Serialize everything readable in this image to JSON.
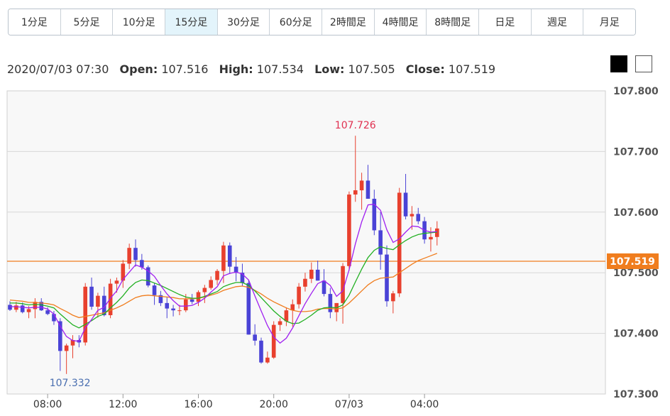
{
  "timeframes": [
    "1分足",
    "5分足",
    "10分足",
    "15分足",
    "30分足",
    "60分足",
    "2時間足",
    "4時間足",
    "8時間足",
    "日足",
    "週足",
    "月足"
  ],
  "active_timeframe": "15分足",
  "ohlc": {
    "datetime": "2020/07/03 07:30",
    "open_label": "Open:",
    "open": "107.516",
    "high_label": "High:",
    "high": "107.534",
    "low_label": "Low:",
    "low": "107.505",
    "close_label": "Close:",
    "close": "107.519"
  },
  "theme_swatches": [
    "dark",
    "light"
  ],
  "colors": {
    "up": "#e8402e",
    "down": "#4a43d6",
    "ma_short": "#a020f0",
    "ma_mid": "#22b022",
    "ma_long": "#f07d1e",
    "price_line": "#f07d1e",
    "max_label": "#e03050",
    "min_label": "#4a6fb0"
  },
  "chart_data": {
    "type": "candlestick",
    "ylim": [
      107.3,
      107.8
    ],
    "yticks": [
      "107.800",
      "107.700",
      "107.600",
      "107.500",
      "107.400",
      "107.300"
    ],
    "xtick_labels": [
      "08:00",
      "12:00",
      "16:00",
      "20:00",
      "07/03",
      "04:00"
    ],
    "xtick_index": [
      6,
      18,
      30,
      42,
      54,
      66
    ],
    "grid": true,
    "current_price": "107.519",
    "max_label": "107.726",
    "min_label": "107.332",
    "candles": [
      [
        107.447,
        107.453,
        107.437,
        107.439
      ],
      [
        107.439,
        107.452,
        107.435,
        107.446
      ],
      [
        107.446,
        107.451,
        107.433,
        107.435
      ],
      [
        107.435,
        107.445,
        107.425,
        107.44
      ],
      [
        107.44,
        107.458,
        107.425,
        107.452
      ],
      [
        107.452,
        107.458,
        107.437,
        107.438
      ],
      [
        107.438,
        107.443,
        107.43,
        107.432
      ],
      [
        107.432,
        107.437,
        107.414,
        107.42
      ],
      [
        107.42,
        107.425,
        107.338,
        107.371
      ],
      [
        107.371,
        107.383,
        107.333,
        107.38
      ],
      [
        107.38,
        107.397,
        107.359,
        107.389
      ],
      [
        107.389,
        107.397,
        107.377,
        107.385
      ],
      [
        107.385,
        107.483,
        107.38,
        107.477
      ],
      [
        107.477,
        107.492,
        107.439,
        107.444
      ],
      [
        107.444,
        107.467,
        107.426,
        107.462
      ],
      [
        107.462,
        107.477,
        107.428,
        107.43
      ],
      [
        107.43,
        107.49,
        107.425,
        107.482
      ],
      [
        107.482,
        107.492,
        107.467,
        107.487
      ],
      [
        107.487,
        107.521,
        107.475,
        107.515
      ],
      [
        107.515,
        107.548,
        107.506,
        107.541
      ],
      [
        107.541,
        107.555,
        107.51,
        107.521
      ],
      [
        107.521,
        107.531,
        107.505,
        107.509
      ],
      [
        107.509,
        107.512,
        107.476,
        107.479
      ],
      [
        107.479,
        107.483,
        107.447,
        107.463
      ],
      [
        107.463,
        107.47,
        107.445,
        107.45
      ],
      [
        107.45,
        107.46,
        107.425,
        107.441
      ],
      [
        107.441,
        107.447,
        107.428,
        107.438
      ],
      [
        107.438,
        107.447,
        107.43,
        107.438
      ],
      [
        107.438,
        107.465,
        107.435,
        107.456
      ],
      [
        107.456,
        107.465,
        107.448,
        107.452
      ],
      [
        107.452,
        107.471,
        107.445,
        107.468
      ],
      [
        107.468,
        107.48,
        107.45,
        107.475
      ],
      [
        107.475,
        107.494,
        107.472,
        107.488
      ],
      [
        107.488,
        107.506,
        107.48,
        107.503
      ],
      [
        107.503,
        107.551,
        107.483,
        107.545
      ],
      [
        107.545,
        107.55,
        107.498,
        107.51
      ],
      [
        107.51,
        107.526,
        107.486,
        107.5
      ],
      [
        107.5,
        107.515,
        107.478,
        107.483
      ],
      [
        107.483,
        107.488,
        107.398,
        107.398
      ],
      [
        107.398,
        107.415,
        107.38,
        107.388
      ],
      [
        107.388,
        107.393,
        107.35,
        107.352
      ],
      [
        107.352,
        107.37,
        107.35,
        107.36
      ],
      [
        107.36,
        107.42,
        107.358,
        107.414
      ],
      [
        107.414,
        107.425,
        107.404,
        107.42
      ],
      [
        107.42,
        107.443,
        107.412,
        107.438
      ],
      [
        107.438,
        107.456,
        107.411,
        107.448
      ],
      [
        107.448,
        107.483,
        107.441,
        107.477
      ],
      [
        107.477,
        107.5,
        107.469,
        107.49
      ],
      [
        107.49,
        107.517,
        107.483,
        107.505
      ],
      [
        107.505,
        107.52,
        107.487,
        107.487
      ],
      [
        107.487,
        107.506,
        107.461,
        107.465
      ],
      [
        107.465,
        107.475,
        107.425,
        107.435
      ],
      [
        107.435,
        107.45,
        107.42,
        107.45
      ],
      [
        107.45,
        107.516,
        107.416,
        107.511
      ],
      [
        107.511,
        107.634,
        107.503,
        107.629
      ],
      [
        107.629,
        107.726,
        107.617,
        107.636
      ],
      [
        107.636,
        107.665,
        107.604,
        107.652
      ],
      [
        107.652,
        107.678,
        107.622,
        107.622
      ],
      [
        107.622,
        107.637,
        107.562,
        107.57
      ],
      [
        107.57,
        107.6,
        107.505,
        107.53
      ],
      [
        107.53,
        107.545,
        107.444,
        107.453
      ],
      [
        107.453,
        107.47,
        107.433,
        107.466
      ],
      [
        107.466,
        107.64,
        107.46,
        107.632
      ],
      [
        107.632,
        107.663,
        107.588,
        107.593
      ],
      [
        107.593,
        107.61,
        107.571,
        107.597
      ],
      [
        107.597,
        107.607,
        107.58,
        107.585
      ],
      [
        107.585,
        107.592,
        107.548,
        107.555
      ],
      [
        107.555,
        107.575,
        107.535,
        107.559
      ],
      [
        107.559,
        107.585,
        107.545,
        107.573
      ]
    ],
    "ma_short": [
      107.444,
      107.444,
      107.443,
      107.442,
      107.443,
      107.443,
      107.44,
      107.432,
      107.412,
      107.395,
      107.388,
      107.387,
      107.409,
      107.423,
      107.438,
      107.443,
      107.458,
      107.47,
      107.489,
      107.501,
      107.513,
      107.509,
      107.503,
      107.494,
      107.479,
      107.465,
      107.454,
      107.445,
      107.445,
      107.446,
      107.451,
      107.458,
      107.468,
      107.477,
      107.495,
      107.499,
      107.501,
      107.498,
      107.488,
      107.462,
      107.437,
      107.413,
      107.394,
      107.384,
      107.392,
      107.409,
      107.429,
      107.449,
      107.466,
      107.482,
      107.487,
      107.479,
      107.461,
      107.47,
      107.505,
      107.548,
      107.584,
      107.612,
      107.613,
      107.603,
      107.571,
      107.55,
      107.556,
      107.567,
      107.577,
      107.576,
      107.57,
      107.567,
      107.568
    ],
    "ma_mid": [
      107.45,
      107.45,
      107.449,
      107.447,
      107.448,
      107.447,
      107.445,
      107.442,
      107.432,
      107.423,
      107.414,
      107.409,
      107.415,
      107.421,
      107.428,
      107.432,
      107.442,
      107.451,
      107.462,
      107.475,
      107.484,
      107.488,
      107.487,
      107.483,
      107.479,
      107.474,
      107.469,
      107.464,
      107.46,
      107.458,
      107.458,
      107.461,
      107.465,
      107.469,
      107.477,
      107.481,
      107.484,
      107.484,
      107.479,
      107.47,
      107.459,
      107.448,
      107.437,
      107.428,
      107.42,
      107.416,
      107.417,
      107.423,
      107.43,
      107.438,
      107.442,
      107.443,
      107.442,
      107.447,
      107.463,
      107.485,
      107.506,
      107.525,
      107.537,
      107.543,
      107.54,
      107.538,
      107.546,
      107.553,
      107.559,
      107.563,
      107.565,
      107.566,
      107.567
    ],
    "ma_long": [
      107.455,
      107.454,
      107.453,
      107.451,
      107.451,
      107.45,
      107.449,
      107.447,
      107.441,
      107.436,
      107.43,
      107.426,
      107.428,
      107.43,
      107.432,
      107.434,
      107.438,
      107.442,
      107.447,
      107.453,
      107.459,
      107.462,
      107.463,
      107.462,
      107.461,
      107.46,
      107.459,
      107.457,
      107.457,
      107.457,
      107.458,
      107.46,
      107.463,
      107.466,
      107.471,
      107.474,
      107.477,
      107.478,
      107.476,
      107.471,
      107.465,
      107.458,
      107.452,
      107.447,
      107.442,
      107.438,
      107.436,
      107.436,
      107.437,
      107.44,
      107.441,
      107.441,
      107.44,
      107.442,
      107.45,
      107.46,
      107.47,
      107.48,
      107.487,
      107.491,
      107.492,
      107.493,
      107.5,
      107.507,
      107.514,
      107.52,
      107.524,
      107.528,
      107.532
    ]
  }
}
